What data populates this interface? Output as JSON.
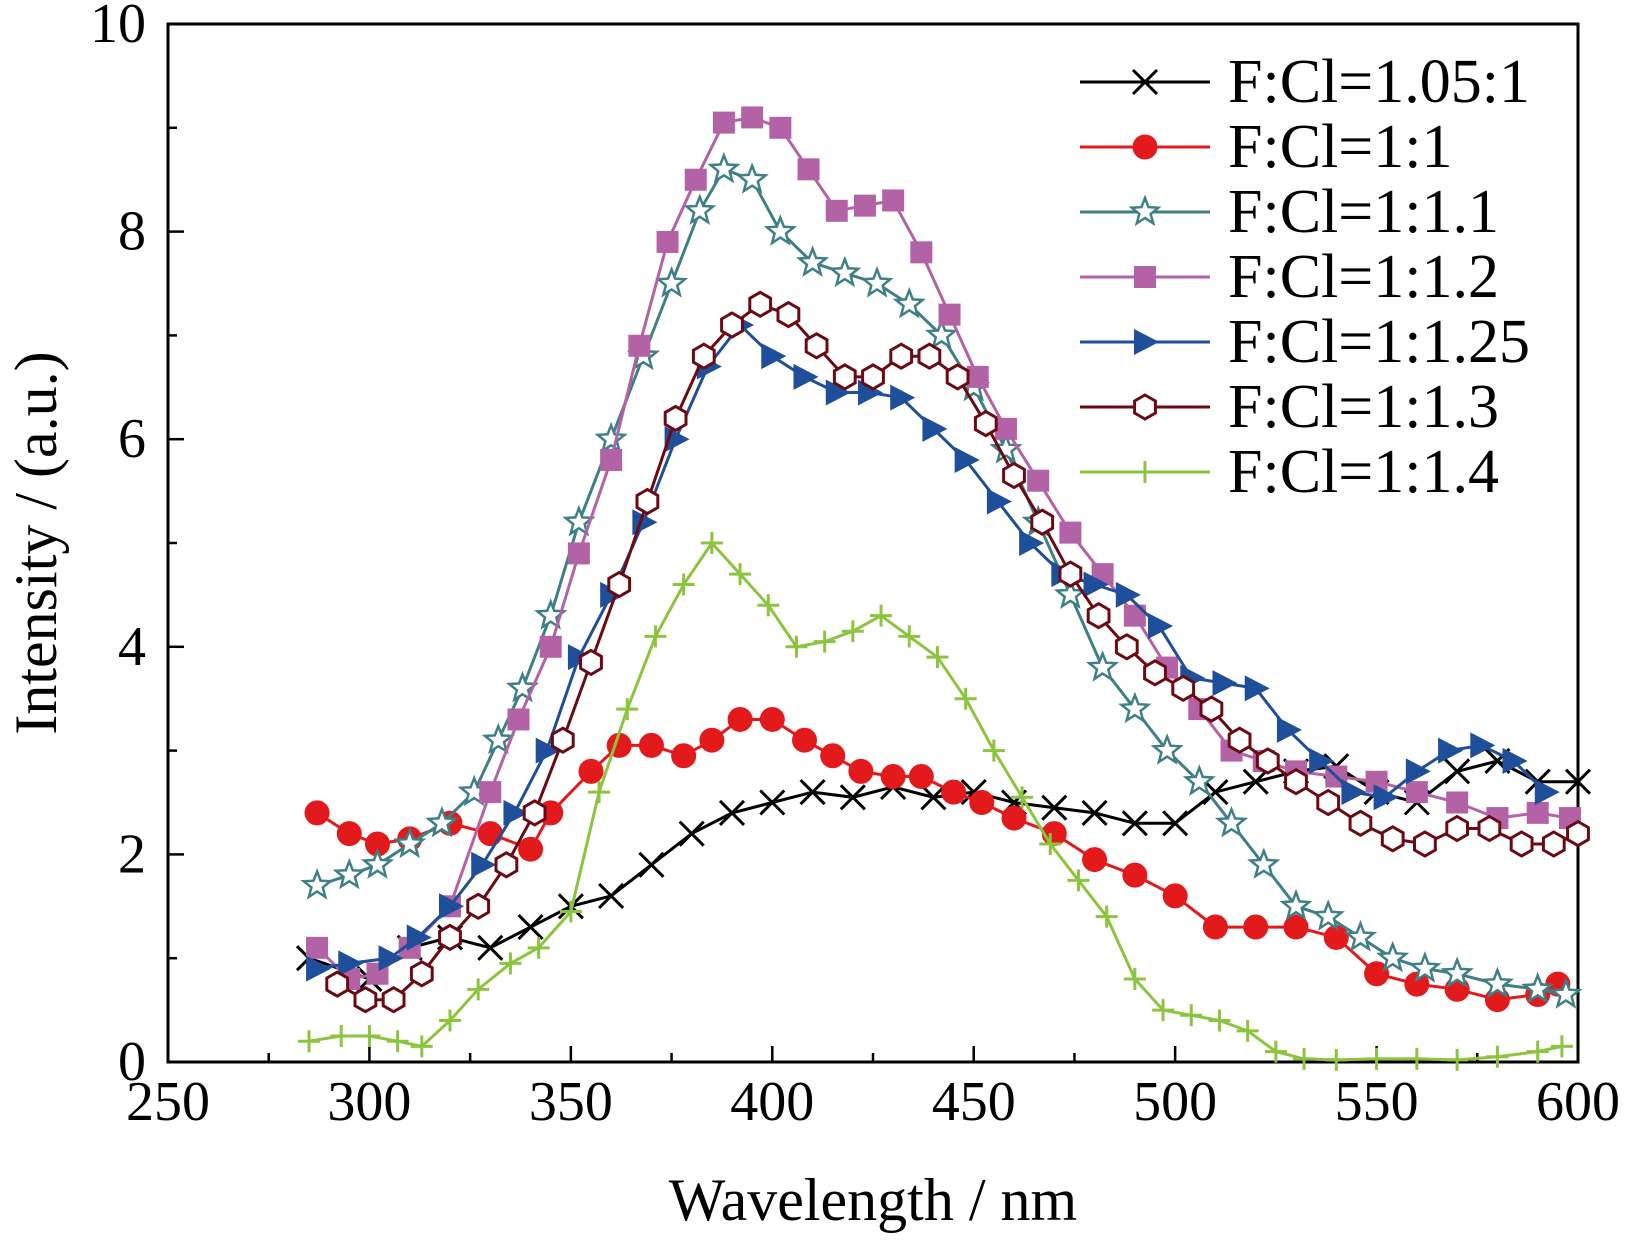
{
  "chart_data": {
    "type": "line",
    "title": "",
    "xlabel": "Wavelength / nm",
    "ylabel": "Intensity / (a.u.)",
    "xlim": [
      250,
      600
    ],
    "ylim": [
      0,
      10
    ],
    "xticks": [
      250,
      300,
      350,
      400,
      450,
      500,
      550,
      600
    ],
    "yticks": [
      0,
      2,
      4,
      6,
      8,
      10
    ],
    "grid": false,
    "legend_position": "top-right",
    "series": [
      {
        "name": "F:Cl=1.05:1",
        "color": "#000000",
        "marker": "x",
        "x": [
          285,
          300,
          310,
          320,
          330,
          340,
          350,
          360,
          370,
          380,
          390,
          400,
          410,
          420,
          430,
          440,
          450,
          460,
          470,
          480,
          490,
          500,
          510,
          520,
          530,
          540,
          550,
          560,
          570,
          580,
          590,
          600
        ],
        "y": [
          1.0,
          0.8,
          1.1,
          1.2,
          1.1,
          1.3,
          1.5,
          1.6,
          1.9,
          2.2,
          2.4,
          2.5,
          2.6,
          2.55,
          2.65,
          2.55,
          2.6,
          2.5,
          2.45,
          2.4,
          2.3,
          2.3,
          2.6,
          2.7,
          2.8,
          2.85,
          2.6,
          2.5,
          2.8,
          2.9,
          2.7,
          2.7
        ]
      },
      {
        "name": "F:Cl=1:1",
        "color": "#e31a1c",
        "marker": "circle",
        "x": [
          287,
          295,
          302,
          310,
          320,
          330,
          340,
          345,
          355,
          362,
          370,
          378,
          385,
          392,
          400,
          408,
          415,
          422,
          430,
          437,
          445,
          452,
          460,
          470,
          480,
          490,
          500,
          510,
          520,
          530,
          540,
          550,
          560,
          570,
          580,
          590,
          595
        ],
        "y": [
          2.4,
          2.2,
          2.1,
          2.15,
          2.3,
          2.2,
          2.05,
          2.4,
          2.8,
          3.05,
          3.05,
          2.95,
          3.1,
          3.3,
          3.3,
          3.1,
          2.95,
          2.8,
          2.75,
          2.75,
          2.6,
          2.5,
          2.35,
          2.2,
          1.95,
          1.8,
          1.6,
          1.3,
          1.3,
          1.3,
          1.2,
          0.85,
          0.75,
          0.7,
          0.6,
          0.65,
          0.75
        ]
      },
      {
        "name": "F:Cl=1:1.1",
        "color": "#3f7f86",
        "marker": "star",
        "x": [
          287,
          295,
          302,
          310,
          318,
          326,
          332,
          338,
          345,
          352,
          360,
          368,
          375,
          382,
          388,
          395,
          402,
          410,
          418,
          426,
          434,
          442,
          450,
          458,
          466,
          474,
          482,
          490,
          498,
          506,
          514,
          522,
          530,
          538,
          546,
          554,
          562,
          570,
          580,
          590,
          597
        ],
        "y": [
          1.7,
          1.8,
          1.9,
          2.1,
          2.3,
          2.6,
          3.1,
          3.6,
          4.3,
          5.2,
          6.0,
          6.8,
          7.5,
          8.2,
          8.6,
          8.5,
          8.0,
          7.7,
          7.6,
          7.5,
          7.3,
          7.0,
          6.5,
          5.9,
          5.2,
          4.5,
          3.8,
          3.4,
          3.0,
          2.7,
          2.3,
          1.9,
          1.5,
          1.4,
          1.2,
          1.0,
          0.9,
          0.85,
          0.75,
          0.7,
          0.65
        ]
      },
      {
        "name": "F:Cl=1:1.2",
        "color": "#b462a6",
        "marker": "square",
        "x": [
          287,
          295,
          302,
          310,
          320,
          330,
          337,
          345,
          352,
          360,
          367,
          374,
          381,
          388,
          395,
          402,
          409,
          416,
          423,
          430,
          437,
          444,
          451,
          458,
          466,
          474,
          482,
          490,
          498,
          506,
          514,
          522,
          530,
          540,
          550,
          560,
          570,
          580,
          590,
          598
        ],
        "y": [
          1.1,
          0.8,
          0.85,
          1.1,
          1.5,
          2.6,
          3.3,
          4.0,
          4.9,
          5.8,
          6.9,
          7.9,
          8.5,
          9.05,
          9.1,
          9.0,
          8.6,
          8.2,
          8.25,
          8.3,
          7.8,
          7.2,
          6.6,
          6.1,
          5.6,
          5.1,
          4.7,
          4.3,
          3.8,
          3.4,
          3.0,
          2.9,
          2.8,
          2.75,
          2.7,
          2.6,
          2.5,
          2.35,
          2.4,
          2.35
        ]
      },
      {
        "name": "F:Cl=1:1.25",
        "color": "#1f4e9a",
        "marker": "triangle-right",
        "x": [
          287,
          295,
          305,
          312,
          320,
          328,
          336,
          344,
          352,
          360,
          368,
          376,
          384,
          392,
          400,
          408,
          416,
          424,
          432,
          440,
          448,
          456,
          464,
          472,
          480,
          488,
          496,
          504,
          512,
          520,
          528,
          536,
          544,
          552,
          560,
          568,
          576,
          584,
          592
        ],
        "y": [
          0.9,
          0.95,
          1.0,
          1.2,
          1.5,
          1.9,
          2.4,
          3.0,
          3.9,
          4.5,
          5.2,
          6.0,
          6.7,
          7.1,
          6.8,
          6.6,
          6.45,
          6.45,
          6.4,
          6.1,
          5.8,
          5.4,
          5.0,
          4.7,
          4.6,
          4.5,
          4.2,
          3.7,
          3.65,
          3.6,
          3.2,
          2.9,
          2.6,
          2.55,
          2.8,
          3.0,
          3.05,
          2.9,
          2.6
        ]
      },
      {
        "name": "F:Cl=1:1.3",
        "color": "#6b0a12",
        "marker": "hexagon",
        "x": [
          292,
          299,
          306,
          313,
          320,
          327,
          334,
          341,
          348,
          355,
          362,
          369,
          376,
          383,
          390,
          397,
          404,
          411,
          418,
          425,
          432,
          439,
          446,
          453,
          460,
          467,
          474,
          481,
          488,
          495,
          502,
          509,
          516,
          523,
          530,
          538,
          546,
          554,
          562,
          570,
          578,
          586,
          594,
          600
        ],
        "y": [
          0.75,
          0.6,
          0.6,
          0.85,
          1.2,
          1.5,
          1.9,
          2.4,
          3.1,
          3.85,
          4.6,
          5.4,
          6.2,
          6.8,
          7.1,
          7.3,
          7.2,
          6.9,
          6.6,
          6.6,
          6.8,
          6.8,
          6.6,
          6.15,
          5.65,
          5.2,
          4.7,
          4.3,
          4.0,
          3.75,
          3.6,
          3.4,
          3.1,
          2.9,
          2.7,
          2.5,
          2.3,
          2.15,
          2.1,
          2.25,
          2.25,
          2.1,
          2.1,
          2.2
        ]
      },
      {
        "name": "F:Cl=1:1.4",
        "color": "#8dc43f",
        "marker": "plus",
        "x": [
          285,
          293,
          300,
          307,
          313,
          320,
          327,
          335,
          342,
          350,
          357,
          364,
          371,
          378,
          385,
          392,
          399,
          406,
          413,
          420,
          427,
          434,
          441,
          448,
          455,
          462,
          469,
          476,
          483,
          490,
          497,
          504,
          511,
          518,
          525,
          532,
          540,
          550,
          560,
          570,
          580,
          590,
          596
        ],
        "y": [
          0.2,
          0.25,
          0.25,
          0.2,
          0.15,
          0.4,
          0.7,
          0.95,
          1.1,
          1.45,
          2.6,
          3.4,
          4.1,
          4.6,
          5.0,
          4.7,
          4.4,
          4.0,
          4.05,
          4.15,
          4.3,
          4.1,
          3.9,
          3.5,
          3.0,
          2.55,
          2.1,
          1.75,
          1.4,
          0.8,
          0.5,
          0.45,
          0.4,
          0.3,
          0.1,
          0.03,
          0.02,
          0.03,
          0.03,
          0.02,
          0.05,
          0.1,
          0.15
        ]
      }
    ]
  }
}
